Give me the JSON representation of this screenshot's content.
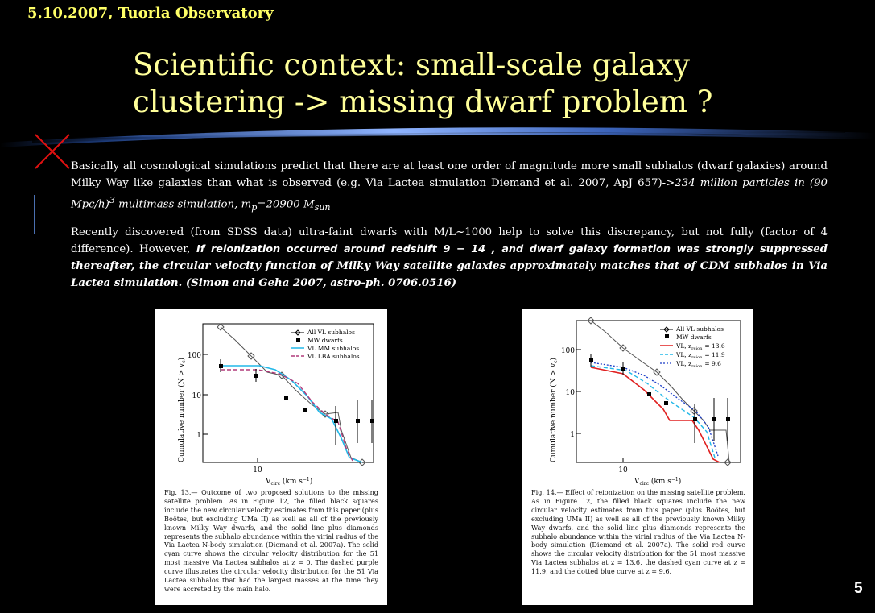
{
  "header": {
    "date_venue": "5.10.2007, Tuorla Observatory"
  },
  "slide": {
    "title_line1": "Scientific context: small-scale galaxy",
    "title_line2": "clustering -> missing dwarf problem ?",
    "page_number": "5"
  },
  "body": {
    "p1_lead": "Basically all cosmological simulations predict that there are at least one order of magnitude more small subhalos (dwarf galaxies) around Milky Way like galaxies than what is observed (e.g. Via Lactea simulation Diemand et al. 2007, ApJ 657)->",
    "p1_ital_a": "234 million particles in (90 Mpc/h)",
    "p1_sup3": "3",
    "p1_ital_b": " multimass simulation, m",
    "p1_sub_p": "p",
    "p1_ital_c": "=20900 M",
    "p1_sub_sun": "sun",
    "p2_lead": "Recently discovered (from SDSS data) ultra-faint dwarfs with M/L~1000 help to solve this discrepancy, but not fully (factor of 4 difference). However,",
    "p2_sans": " If reionization occurred around redshift 9 − 14 , and dwarf galaxy formation was strongly",
    "p2_bi": " suppressed thereafter, the circular velocity function of Milky Way satellite galaxies approximately matches that of CDM subhalos in Via Lactea simulation. (Simon and Geha 2007, astro-ph. 0706.0516)"
  },
  "figures": [
    {
      "ylabel": "Cumulative number (N > v",
      "ylabel_sub": "c",
      "ylabel_end": ")",
      "xlabel": "V",
      "xlabel_sub": "circ",
      "xlabel_end": " (km s",
      "xlabel_sup": "−1",
      "xlabel_close": ")",
      "y_ticks": [
        "100",
        "10",
        "1"
      ],
      "x_tick": "10",
      "legend": [
        "All VL subhalos",
        "MW dwarfs",
        "VL MM subhalos",
        "VL LBA subhalos"
      ],
      "caption": "Fig. 13.— Outcome of two proposed solutions to the missing satellite problem. As in Figure 12, the filled black squares include the new circular velocity estimates from this paper (plus Boötes, but excluding UMa II) as well as all of the previously known Milky Way dwarfs, and the solid line plus diamonds represents the subhalo abundance within the virial radius of the Via Lactea N-body simulation (Diemand et al. 2007a). The solid cyan curve shows the circular velocity distribution for the 51 most massive Via Lactea subhalos at z = 0. The dashed purple curve illustrates the circular velocity distribution for the 51 Via Lactea subhalos that had the largest masses at the time they were accreted by the main halo."
    },
    {
      "ylabel": "Cumulative number (N > v",
      "ylabel_sub": "c",
      "ylabel_end": ")",
      "xlabel": "V",
      "xlabel_sub": "circ",
      "xlabel_end": " (km s",
      "xlabel_sup": "−1",
      "xlabel_close": ")",
      "y_ticks": [
        "100",
        "10",
        "1"
      ],
      "x_tick": "10",
      "legend": [
        "All VL subhalos",
        "MW dwarfs",
        "VL, z",
        "VL, z",
        "VL, z"
      ],
      "legend_sub": "reion",
      "legend_vals": [
        "= 13.6",
        "= 11.9",
        "= 9.6"
      ],
      "caption": "Fig. 14.— Effect of reionization on the missing satellite problem. As in Figure 12, the filled black squares include the new circular velocity estimates from this paper (plus Boötes, but excluding UMa II) as well as all of the previously known Milky Way dwarfs, and the solid line plus diamonds represents the subhalo abundance within the virial radius of the Via Lactea N-body simulation (Diemand et al. 2007a). The solid red curve shows the circular velocity distribution for the 51 most massive Via Lactea subhalos at z = 13.6, the dashed cyan curve at z = 11.9, and the dotted blue curve at z = 9.6."
    }
  ],
  "colors": {
    "header": "#ffff66",
    "title": "#ffff99",
    "cyan": "#22b8e8",
    "purple": "#b03a7a",
    "red": "#e02020",
    "blue": "#1a3cc8"
  }
}
